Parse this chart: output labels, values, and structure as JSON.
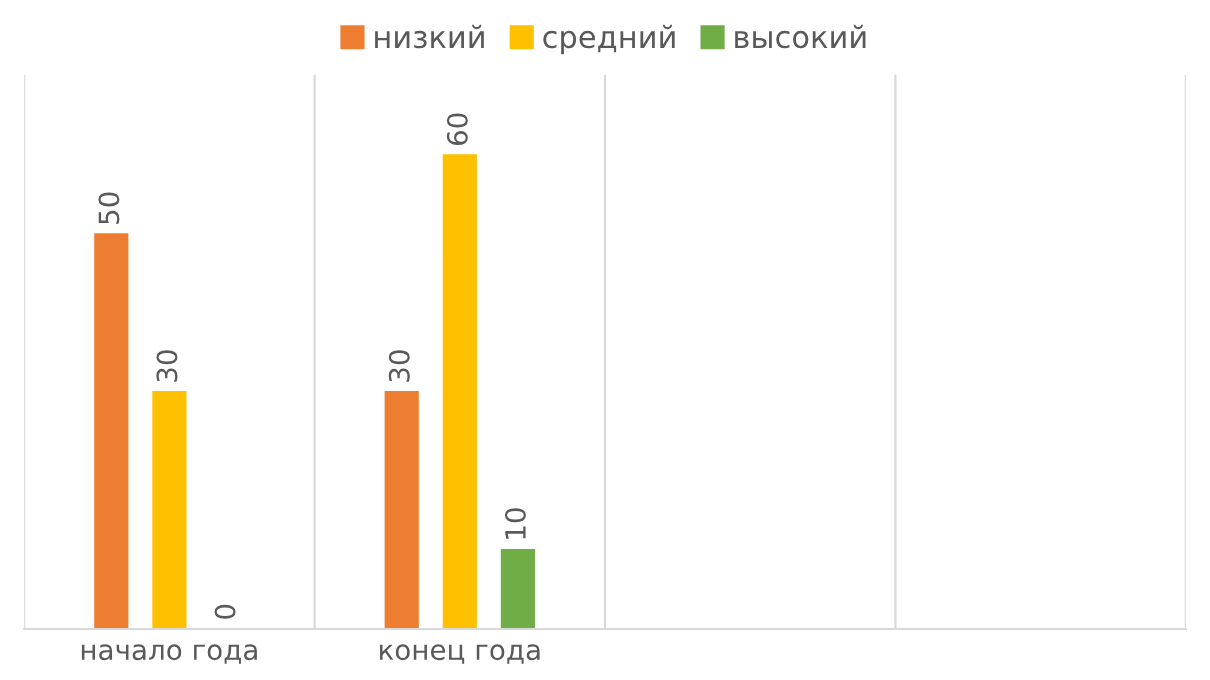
{
  "chart_data": {
    "type": "bar",
    "categories": [
      "начало года",
      "конец года",
      null,
      null
    ],
    "series": [
      {
        "name": "низкий",
        "color": "#ed7d31",
        "values": [
          50,
          30,
          null,
          null
        ]
      },
      {
        "name": "средний",
        "color": "#ffc000",
        "values": [
          30,
          60,
          null,
          null
        ]
      },
      {
        "name": "высокий",
        "color": "#70ad47",
        "values": [
          0,
          10,
          null,
          null
        ]
      }
    ],
    "data_labels": true,
    "legend": "top",
    "grid": "x"
  }
}
